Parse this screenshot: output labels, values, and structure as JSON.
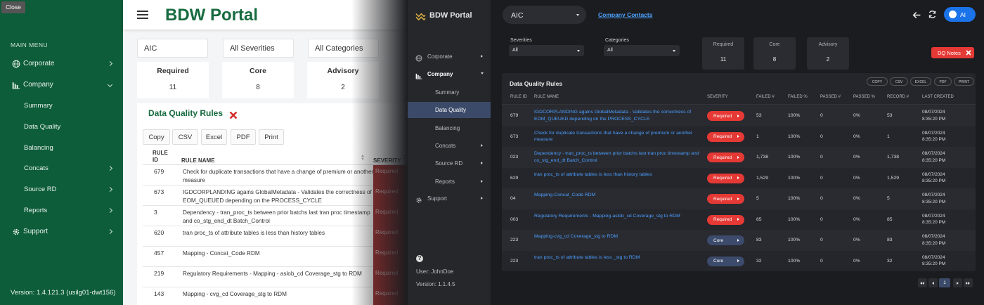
{
  "left": {
    "close": "Close",
    "sidebar": {
      "heading": "MAIN MENU",
      "menu": [
        {
          "label": "Corporate"
        },
        {
          "label": "Company",
          "children": [
            "Summary",
            "Data Quality",
            "Balancing",
            "Concats",
            "Source RD",
            "Reports"
          ]
        },
        {
          "label": "Support"
        }
      ],
      "version": "Version: 1.4.121.3 (usilg01-dwt156)"
    },
    "header": {
      "title": "BDW Portal"
    },
    "filters": [
      "AIC",
      "All Severities",
      "All Categories"
    ],
    "cards": [
      {
        "label": "Required",
        "value": 11
      },
      {
        "label": "Core",
        "value": 8
      },
      {
        "label": "Advisory",
        "value": 2
      }
    ],
    "table": {
      "title": "Data Quality Rules",
      "buttons": [
        "Copy",
        "CSV",
        "Excel",
        "PDF",
        "Print"
      ],
      "columns": [
        "RULE ID",
        "RULE NAME",
        "SEVERITY"
      ],
      "rows": [
        [
          "679",
          "Check for duplicate transactions that have a change of premium or another measure",
          "Required"
        ],
        [
          "673",
          "IGDCORPLANDING agains GlobalMetadata - Validates the correctness of EOM_QUEUED depending on the PROCESS_CYCLE",
          "Required"
        ],
        [
          "3",
          "Dependency - tran_proc_ts between prior batchs last tran proc timestamp and co_stg_end_dt Batch_Control",
          "Required"
        ],
        [
          "620",
          "tran proc_ts of attribute tables is less than history tables",
          "Required"
        ],
        [
          "457",
          "Mapping - Concat_Code RDM",
          "Required"
        ],
        [
          "219",
          "Regulatory Requirements - Mapping - aslob_cd Coverage_stg to RDM",
          "Required"
        ],
        [
          "143",
          "Mapping - cvg_cd Coverage_stg to RDM",
          "Required"
        ]
      ]
    }
  },
  "right": {
    "sidebar": {
      "title": "BDW Portal",
      "menu": [
        {
          "label": "Corporate"
        },
        {
          "label": "Company",
          "children": [
            "Summary",
            "Data Quality",
            "Balancing",
            "Concats",
            "Source RD",
            "Reports"
          ]
        },
        {
          "label": "Support"
        }
      ],
      "user": "User: JohnDoe",
      "version": "Version: 1.1.4.5"
    },
    "topbar": {
      "entity": "AIC",
      "link": "Company Contacts",
      "ai": "AI"
    },
    "filters": [
      {
        "label": "Severities",
        "value": "All"
      },
      {
        "label": "Categories",
        "value": "All"
      }
    ],
    "cards": [
      {
        "label": "Required",
        "value": 11
      },
      {
        "label": "Core",
        "value": 8
      },
      {
        "label": "Advisory",
        "value": 2
      }
    ],
    "notes": "DQ Notes",
    "table": {
      "title": "Data Quality Rules",
      "buttons": [
        "COPY",
        "CSV",
        "EXCEL",
        "PDF",
        "PRINT"
      ],
      "columns": [
        "RULE ID",
        "RULE NAME",
        "SEVERITY",
        "FAILED #",
        "FAILED %",
        "PASSED #",
        "PASSED %",
        "RECORD #",
        "LAST CREATED"
      ],
      "rows": [
        [
          "679",
          "IGDCORPLANDING agains GlobalMetadata - Validates the correctness of EOM_QUEUED depending on the PROCESS_CYCLE",
          "Required",
          "53",
          "100%",
          "0",
          "0%",
          "53",
          "08/07/2024 8:35:20 PM"
        ],
        [
          "673",
          "Check for duplicate transactions that have a change of premium or another measure",
          "Required",
          "1",
          "100%",
          "0",
          "0%",
          "1",
          "08/07/2024 8:35:20 PM"
        ],
        [
          "023",
          "Dependency - tran_proc_ts between prior batchs last tran proc timestamp and co_stg_end_dt Batch_Control",
          "Required",
          "1,738",
          "100%",
          "0",
          "0%",
          "1,738",
          "08/07/2024 8:35:20 PM"
        ],
        [
          "629",
          "tran proc_ts of attribute tables is less than history tables",
          "Required",
          "1,529",
          "100%",
          "0",
          "0%",
          "1,529",
          "08/07/2024 8:35:20 PM"
        ],
        [
          "04",
          "Mapping-Concat_Code RDM",
          "Required",
          "5",
          "100%",
          "0",
          "0%",
          "5",
          "08/07/2024 8:35:20 PM"
        ],
        [
          "003",
          "Regulatory Requirements - Mapping-aslob_cd Coverage_stg to RDM",
          "Required",
          "85",
          "100%",
          "0",
          "0%",
          "85",
          "08/07/2024 8:35:20 PM"
        ],
        [
          "223",
          "Mapping-cvg_cd Coverage_stg to RDM",
          "Core",
          "83",
          "100%",
          "0",
          "0%",
          "83",
          "08/07/2024 8:35:20 PM"
        ],
        [
          "223",
          "tran proc_ts of attribute tables is less _stg to RDM",
          "Core",
          "32",
          "100%",
          "0",
          "0%",
          "32",
          "08/07/2024 8:35:20 PM"
        ]
      ],
      "page": 1
    }
  }
}
